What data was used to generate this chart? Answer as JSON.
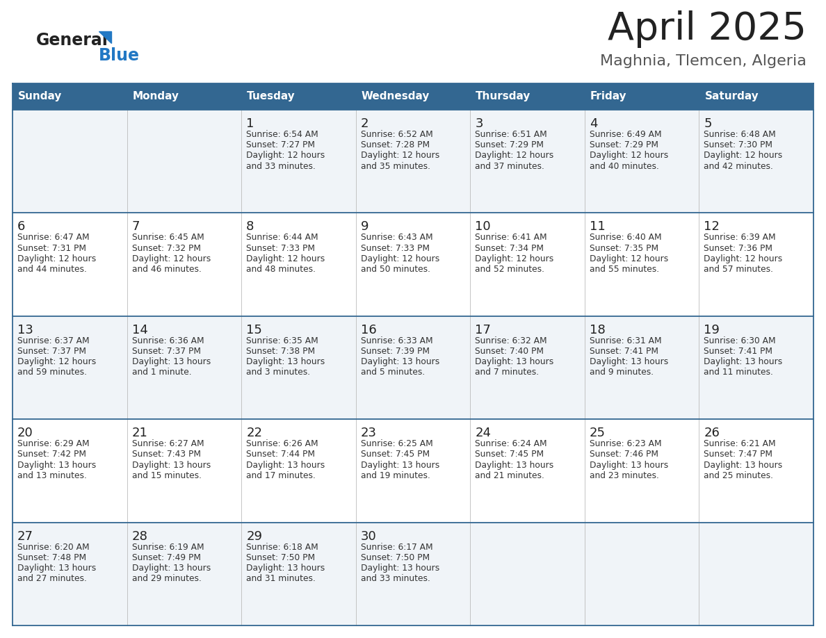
{
  "title": "April 2025",
  "subtitle": "Maghnia, Tlemcen, Algeria",
  "days_of_week": [
    "Sunday",
    "Monday",
    "Tuesday",
    "Wednesday",
    "Thursday",
    "Friday",
    "Saturday"
  ],
  "header_bg": "#336791",
  "header_text": "#FFFFFF",
  "row_bg_odd": "#F0F4F8",
  "row_bg_even": "#FFFFFF",
  "cell_text_color": "#333333",
  "day_number_color": "#222222",
  "border_color": "#336791",
  "title_color": "#222222",
  "subtitle_color": "#555555",
  "logo_general_color": "#222222",
  "logo_blue_color": "#2278C4",
  "weeks": [
    {
      "days": [
        {
          "date": "",
          "sunrise": "",
          "sunset": "",
          "daylight": ""
        },
        {
          "date": "",
          "sunrise": "",
          "sunset": "",
          "daylight": ""
        },
        {
          "date": "1",
          "sunrise": "Sunrise: 6:54 AM",
          "sunset": "Sunset: 7:27 PM",
          "daylight": "Daylight: 12 hours\nand 33 minutes."
        },
        {
          "date": "2",
          "sunrise": "Sunrise: 6:52 AM",
          "sunset": "Sunset: 7:28 PM",
          "daylight": "Daylight: 12 hours\nand 35 minutes."
        },
        {
          "date": "3",
          "sunrise": "Sunrise: 6:51 AM",
          "sunset": "Sunset: 7:29 PM",
          "daylight": "Daylight: 12 hours\nand 37 minutes."
        },
        {
          "date": "4",
          "sunrise": "Sunrise: 6:49 AM",
          "sunset": "Sunset: 7:29 PM",
          "daylight": "Daylight: 12 hours\nand 40 minutes."
        },
        {
          "date": "5",
          "sunrise": "Sunrise: 6:48 AM",
          "sunset": "Sunset: 7:30 PM",
          "daylight": "Daylight: 12 hours\nand 42 minutes."
        }
      ]
    },
    {
      "days": [
        {
          "date": "6",
          "sunrise": "Sunrise: 6:47 AM",
          "sunset": "Sunset: 7:31 PM",
          "daylight": "Daylight: 12 hours\nand 44 minutes."
        },
        {
          "date": "7",
          "sunrise": "Sunrise: 6:45 AM",
          "sunset": "Sunset: 7:32 PM",
          "daylight": "Daylight: 12 hours\nand 46 minutes."
        },
        {
          "date": "8",
          "sunrise": "Sunrise: 6:44 AM",
          "sunset": "Sunset: 7:33 PM",
          "daylight": "Daylight: 12 hours\nand 48 minutes."
        },
        {
          "date": "9",
          "sunrise": "Sunrise: 6:43 AM",
          "sunset": "Sunset: 7:33 PM",
          "daylight": "Daylight: 12 hours\nand 50 minutes."
        },
        {
          "date": "10",
          "sunrise": "Sunrise: 6:41 AM",
          "sunset": "Sunset: 7:34 PM",
          "daylight": "Daylight: 12 hours\nand 52 minutes."
        },
        {
          "date": "11",
          "sunrise": "Sunrise: 6:40 AM",
          "sunset": "Sunset: 7:35 PM",
          "daylight": "Daylight: 12 hours\nand 55 minutes."
        },
        {
          "date": "12",
          "sunrise": "Sunrise: 6:39 AM",
          "sunset": "Sunset: 7:36 PM",
          "daylight": "Daylight: 12 hours\nand 57 minutes."
        }
      ]
    },
    {
      "days": [
        {
          "date": "13",
          "sunrise": "Sunrise: 6:37 AM",
          "sunset": "Sunset: 7:37 PM",
          "daylight": "Daylight: 12 hours\nand 59 minutes."
        },
        {
          "date": "14",
          "sunrise": "Sunrise: 6:36 AM",
          "sunset": "Sunset: 7:37 PM",
          "daylight": "Daylight: 13 hours\nand 1 minute."
        },
        {
          "date": "15",
          "sunrise": "Sunrise: 6:35 AM",
          "sunset": "Sunset: 7:38 PM",
          "daylight": "Daylight: 13 hours\nand 3 minutes."
        },
        {
          "date": "16",
          "sunrise": "Sunrise: 6:33 AM",
          "sunset": "Sunset: 7:39 PM",
          "daylight": "Daylight: 13 hours\nand 5 minutes."
        },
        {
          "date": "17",
          "sunrise": "Sunrise: 6:32 AM",
          "sunset": "Sunset: 7:40 PM",
          "daylight": "Daylight: 13 hours\nand 7 minutes."
        },
        {
          "date": "18",
          "sunrise": "Sunrise: 6:31 AM",
          "sunset": "Sunset: 7:41 PM",
          "daylight": "Daylight: 13 hours\nand 9 minutes."
        },
        {
          "date": "19",
          "sunrise": "Sunrise: 6:30 AM",
          "sunset": "Sunset: 7:41 PM",
          "daylight": "Daylight: 13 hours\nand 11 minutes."
        }
      ]
    },
    {
      "days": [
        {
          "date": "20",
          "sunrise": "Sunrise: 6:29 AM",
          "sunset": "Sunset: 7:42 PM",
          "daylight": "Daylight: 13 hours\nand 13 minutes."
        },
        {
          "date": "21",
          "sunrise": "Sunrise: 6:27 AM",
          "sunset": "Sunset: 7:43 PM",
          "daylight": "Daylight: 13 hours\nand 15 minutes."
        },
        {
          "date": "22",
          "sunrise": "Sunrise: 6:26 AM",
          "sunset": "Sunset: 7:44 PM",
          "daylight": "Daylight: 13 hours\nand 17 minutes."
        },
        {
          "date": "23",
          "sunrise": "Sunrise: 6:25 AM",
          "sunset": "Sunset: 7:45 PM",
          "daylight": "Daylight: 13 hours\nand 19 minutes."
        },
        {
          "date": "24",
          "sunrise": "Sunrise: 6:24 AM",
          "sunset": "Sunset: 7:45 PM",
          "daylight": "Daylight: 13 hours\nand 21 minutes."
        },
        {
          "date": "25",
          "sunrise": "Sunrise: 6:23 AM",
          "sunset": "Sunset: 7:46 PM",
          "daylight": "Daylight: 13 hours\nand 23 minutes."
        },
        {
          "date": "26",
          "sunrise": "Sunrise: 6:21 AM",
          "sunset": "Sunset: 7:47 PM",
          "daylight": "Daylight: 13 hours\nand 25 minutes."
        }
      ]
    },
    {
      "days": [
        {
          "date": "27",
          "sunrise": "Sunrise: 6:20 AM",
          "sunset": "Sunset: 7:48 PM",
          "daylight": "Daylight: 13 hours\nand 27 minutes."
        },
        {
          "date": "28",
          "sunrise": "Sunrise: 6:19 AM",
          "sunset": "Sunset: 7:49 PM",
          "daylight": "Daylight: 13 hours\nand 29 minutes."
        },
        {
          "date": "29",
          "sunrise": "Sunrise: 6:18 AM",
          "sunset": "Sunset: 7:50 PM",
          "daylight": "Daylight: 13 hours\nand 31 minutes."
        },
        {
          "date": "30",
          "sunrise": "Sunrise: 6:17 AM",
          "sunset": "Sunset: 7:50 PM",
          "daylight": "Daylight: 13 hours\nand 33 minutes."
        },
        {
          "date": "",
          "sunrise": "",
          "sunset": "",
          "daylight": ""
        },
        {
          "date": "",
          "sunrise": "",
          "sunset": "",
          "daylight": ""
        },
        {
          "date": "",
          "sunrise": "",
          "sunset": "",
          "daylight": ""
        }
      ]
    }
  ],
  "fig_width": 11.88,
  "fig_height": 9.18,
  "dpi": 100
}
